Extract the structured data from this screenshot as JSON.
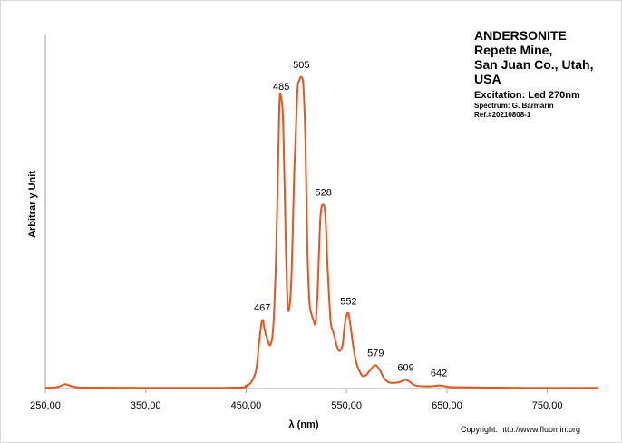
{
  "chart_data": {
    "type": "line",
    "title": [
      "ANDERSONITE",
      "Repete Mine,",
      "San Juan Co., Utah,",
      "USA"
    ],
    "excitation": "Excitation:  Led 270nm",
    "spectrum_credit": "Spectrum: G. Barmarin",
    "reference": "Ref.#20210808-1",
    "xlabel": "λ (nm)",
    "ylabel": "Arbitrar y Unit",
    "xlim": [
      250,
      800
    ],
    "ylim": [
      0,
      1
    ],
    "x_ticks": [
      250,
      350,
      450,
      550,
      650,
      750
    ],
    "x_tick_labels": [
      "250,00",
      "350,00",
      "450,00",
      "550,00",
      "650,00",
      "750,00"
    ],
    "grid": false,
    "color": "#e8541e",
    "series": [
      {
        "x": [
          250,
          262,
          268,
          270,
          272,
          278,
          290,
          350,
          440,
          450,
          455,
          460,
          463,
          466,
          469,
          471,
          474,
          477,
          480,
          483,
          485,
          487,
          490,
          492,
          495,
          498,
          501,
          503,
          505,
          507,
          509,
          511,
          513,
          515,
          517,
          519,
          521,
          524,
          527,
          529,
          531,
          534,
          537,
          540,
          543,
          546,
          548,
          550,
          552,
          554,
          557,
          560,
          563,
          566,
          570,
          575,
          579,
          583,
          587,
          592,
          597,
          602,
          606,
          609,
          612,
          617,
          622,
          630,
          637,
          640,
          642,
          645,
          650,
          660,
          700,
          750,
          790,
          800
        ],
        "y": [
          0.002,
          0.005,
          0.012,
          0.014,
          0.012,
          0.006,
          0.003,
          0.002,
          0.003,
          0.01,
          0.02,
          0.06,
          0.15,
          0.22,
          0.18,
          0.16,
          0.14,
          0.2,
          0.45,
          0.9,
          0.93,
          0.84,
          0.4,
          0.25,
          0.35,
          0.7,
          0.95,
          0.99,
          1.0,
          0.97,
          0.8,
          0.45,
          0.28,
          0.24,
          0.22,
          0.21,
          0.3,
          0.55,
          0.59,
          0.55,
          0.4,
          0.22,
          0.18,
          0.14,
          0.12,
          0.14,
          0.2,
          0.235,
          0.24,
          0.2,
          0.13,
          0.08,
          0.055,
          0.04,
          0.045,
          0.065,
          0.075,
          0.06,
          0.035,
          0.02,
          0.018,
          0.02,
          0.025,
          0.028,
          0.024,
          0.012,
          0.008,
          0.007,
          0.008,
          0.009,
          0.01,
          0.009,
          0.006,
          0.004,
          0.003,
          0.002,
          0.002,
          0.002
        ]
      }
    ],
    "annotations": [
      {
        "text": "467",
        "x": 466,
        "y": 0.22
      },
      {
        "text": "485",
        "x": 485,
        "y": 0.93
      },
      {
        "text": "505",
        "x": 505,
        "y": 1.0
      },
      {
        "text": "528",
        "x": 527,
        "y": 0.59
      },
      {
        "text": "552",
        "x": 552,
        "y": 0.24
      },
      {
        "text": "579",
        "x": 579,
        "y": 0.075
      },
      {
        "text": "609",
        "x": 609,
        "y": 0.028
      },
      {
        "text": "642",
        "x": 642,
        "y": 0.01
      }
    ]
  },
  "copyright": "Copyright: http://www.fluomin.org"
}
